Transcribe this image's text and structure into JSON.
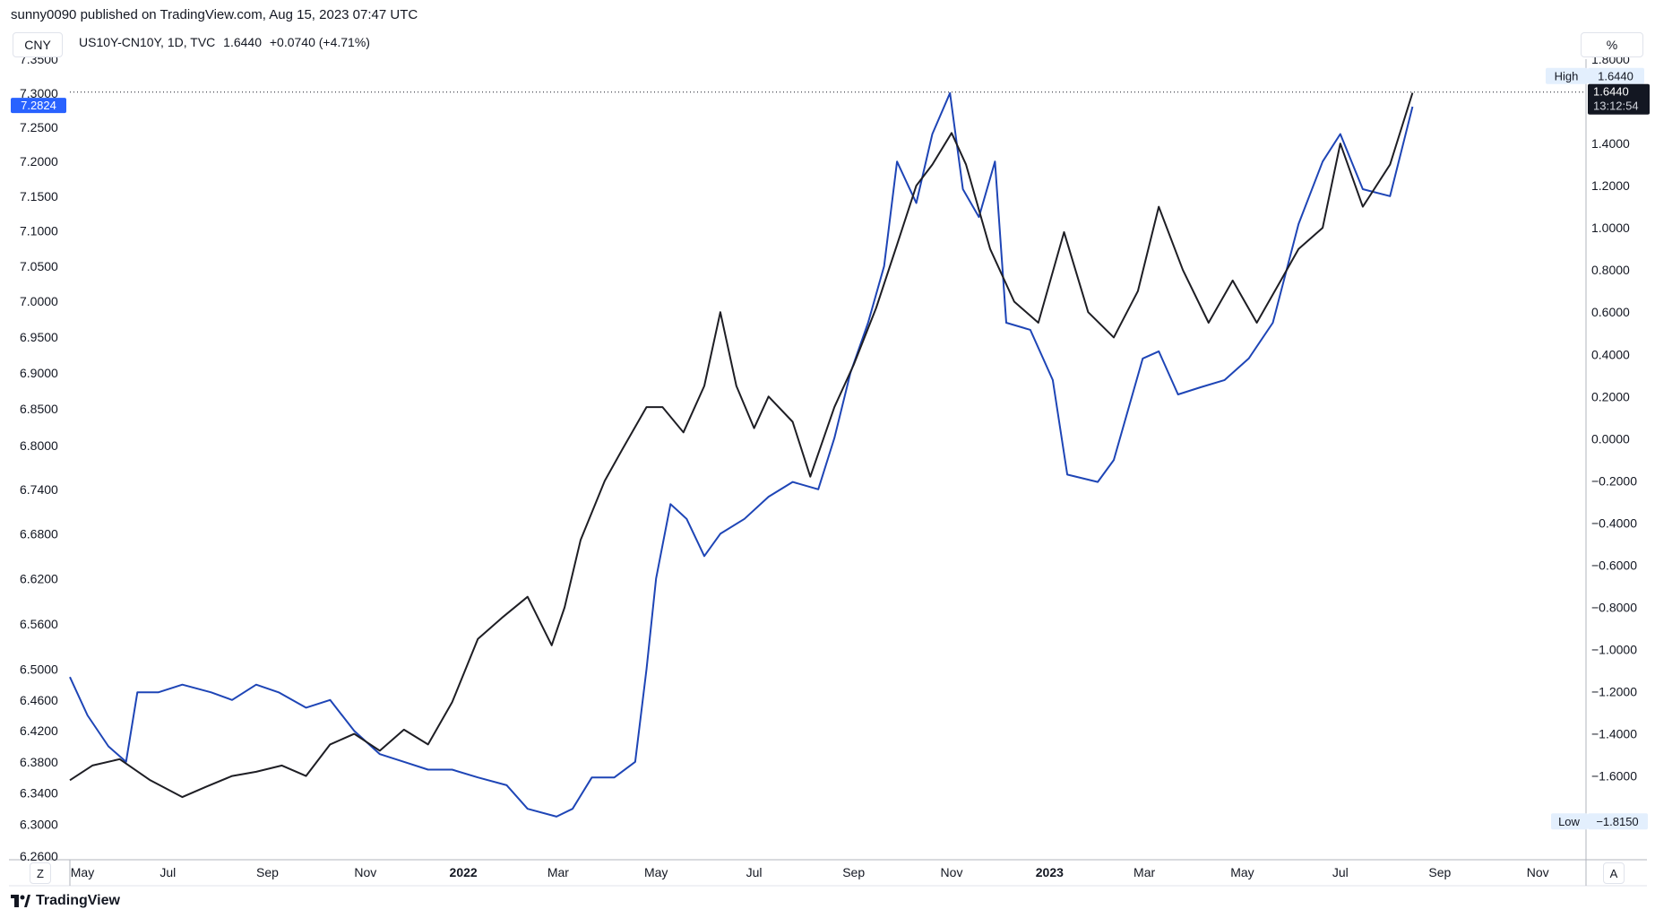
{
  "header": {
    "attribution": "sunny0090 published on TradingView.com, Aug 15, 2023 07:47 UTC"
  },
  "toolbar": {
    "symbol_button": "CNY",
    "percent_button": "%",
    "z_button": "Z",
    "a_button": "A"
  },
  "legend": {
    "symbol": "US10Y-CN10Y, 1D, TVC",
    "value": "1.6440",
    "change": "+0.0740 (+4.71%)"
  },
  "footer": {
    "brand": "TradingView"
  },
  "colors": {
    "cny_line": "#1e45b6",
    "spread_line": "#1e1e24",
    "cny_badge": "#2962ff",
    "spread_badge": "#131722",
    "label_bg": "#e3effd"
  },
  "chart_data": {
    "type": "line",
    "x_axis": {
      "range": [
        "2021-05-01",
        "2023-12-01"
      ],
      "ticks": [
        {
          "date": "2021-05-01",
          "label": "May",
          "bold": false
        },
        {
          "date": "2021-07-01",
          "label": "Jul",
          "bold": false
        },
        {
          "date": "2021-09-01",
          "label": "Sep",
          "bold": false
        },
        {
          "date": "2021-11-01",
          "label": "Nov",
          "bold": false
        },
        {
          "date": "2022-01-01",
          "label": "2022",
          "bold": true
        },
        {
          "date": "2022-03-01",
          "label": "Mar",
          "bold": false
        },
        {
          "date": "2022-05-01",
          "label": "May",
          "bold": false
        },
        {
          "date": "2022-07-01",
          "label": "Jul",
          "bold": false
        },
        {
          "date": "2022-09-01",
          "label": "Sep",
          "bold": false
        },
        {
          "date": "2022-11-01",
          "label": "Nov",
          "bold": false
        },
        {
          "date": "2023-01-01",
          "label": "2023",
          "bold": true
        },
        {
          "date": "2023-03-01",
          "label": "Mar",
          "bold": false
        },
        {
          "date": "2023-05-01",
          "label": "May",
          "bold": false
        },
        {
          "date": "2023-07-01",
          "label": "Jul",
          "bold": false
        },
        {
          "date": "2023-09-01",
          "label": "Sep",
          "bold": false
        },
        {
          "date": "2023-11-01",
          "label": "Nov",
          "bold": false
        }
      ]
    },
    "left_axis": {
      "scale": "log",
      "ylim": [
        6.26,
        7.35
      ],
      "tick_labels": [
        "7.3500",
        "7.3000",
        "7.2500",
        "7.2000",
        "7.1500",
        "7.1000",
        "7.0500",
        "7.0000",
        "6.9500",
        "6.9000",
        "6.8500",
        "6.8000",
        "6.7400",
        "6.6800",
        "6.6200",
        "6.5600",
        "6.5000",
        "6.4600",
        "6.4200",
        "6.3800",
        "6.3400",
        "6.3000",
        "6.2600"
      ],
      "current_label": "7.2824"
    },
    "right_axis": {
      "ylim": [
        -1.98,
        1.8
      ],
      "tick_labels": [
        "1.8000",
        "1.4000",
        "1.2000",
        "1.0000",
        "0.8000",
        "0.6000",
        "0.4000",
        "0.2000",
        "0.0000",
        "−0.2000",
        "−0.4000",
        "−0.6000",
        "−0.8000",
        "−1.0000",
        "−1.2000",
        "−1.4000",
        "−1.6000"
      ],
      "high_label": "High",
      "high_value": "1.6440",
      "low_label": "Low",
      "low_value": "−1.8150",
      "current_value": "1.6440",
      "countdown": "13:12:54"
    },
    "series": [
      {
        "name": "CNY",
        "axis": "left",
        "points": [
          [
            "2021-05-01",
            6.49
          ],
          [
            "2021-05-12",
            6.44
          ],
          [
            "2021-05-25",
            6.4
          ],
          [
            "2021-06-05",
            6.38
          ],
          [
            "2021-06-12",
            6.47
          ],
          [
            "2021-06-25",
            6.47
          ],
          [
            "2021-07-10",
            6.48
          ],
          [
            "2021-07-28",
            6.47
          ],
          [
            "2021-08-10",
            6.46
          ],
          [
            "2021-08-25",
            6.48
          ],
          [
            "2021-09-08",
            6.47
          ],
          [
            "2021-09-25",
            6.45
          ],
          [
            "2021-10-10",
            6.46
          ],
          [
            "2021-10-25",
            6.42
          ],
          [
            "2021-11-10",
            6.39
          ],
          [
            "2021-11-25",
            6.38
          ],
          [
            "2021-12-10",
            6.37
          ],
          [
            "2021-12-25",
            6.37
          ],
          [
            "2022-01-10",
            6.36
          ],
          [
            "2022-01-28",
            6.35
          ],
          [
            "2022-02-10",
            6.32
          ],
          [
            "2022-02-28",
            6.31
          ],
          [
            "2022-03-10",
            6.32
          ],
          [
            "2022-03-22",
            6.36
          ],
          [
            "2022-04-05",
            6.36
          ],
          [
            "2022-04-18",
            6.38
          ],
          [
            "2022-04-25",
            6.5
          ],
          [
            "2022-05-01",
            6.62
          ],
          [
            "2022-05-10",
            6.72
          ],
          [
            "2022-05-20",
            6.7
          ],
          [
            "2022-05-31",
            6.65
          ],
          [
            "2022-06-10",
            6.68
          ],
          [
            "2022-06-25",
            6.7
          ],
          [
            "2022-07-10",
            6.73
          ],
          [
            "2022-07-25",
            6.75
          ],
          [
            "2022-08-10",
            6.74
          ],
          [
            "2022-08-20",
            6.81
          ],
          [
            "2022-08-30",
            6.9
          ],
          [
            "2022-09-10",
            6.97
          ],
          [
            "2022-09-20",
            7.05
          ],
          [
            "2022-09-28",
            7.2
          ],
          [
            "2022-10-10",
            7.14
          ],
          [
            "2022-10-20",
            7.24
          ],
          [
            "2022-10-31",
            7.3
          ],
          [
            "2022-11-08",
            7.16
          ],
          [
            "2022-11-18",
            7.12
          ],
          [
            "2022-11-28",
            7.2
          ],
          [
            "2022-12-05",
            6.97
          ],
          [
            "2022-12-20",
            6.96
          ],
          [
            "2023-01-03",
            6.89
          ],
          [
            "2023-01-12",
            6.76
          ],
          [
            "2023-01-31",
            6.75
          ],
          [
            "2023-02-10",
            6.78
          ],
          [
            "2023-02-28",
            6.92
          ],
          [
            "2023-03-10",
            6.93
          ],
          [
            "2023-03-22",
            6.87
          ],
          [
            "2023-04-05",
            6.88
          ],
          [
            "2023-04-20",
            6.89
          ],
          [
            "2023-05-05",
            6.92
          ],
          [
            "2023-05-20",
            6.97
          ],
          [
            "2023-06-05",
            7.11
          ],
          [
            "2023-06-20",
            7.2
          ],
          [
            "2023-07-01",
            7.24
          ],
          [
            "2023-07-15",
            7.16
          ],
          [
            "2023-08-01",
            7.15
          ],
          [
            "2023-08-15",
            7.28
          ]
        ]
      },
      {
        "name": "US10Y-CN10Y",
        "axis": "right",
        "points": [
          [
            "2021-05-01",
            -1.62
          ],
          [
            "2021-05-15",
            -1.55
          ],
          [
            "2021-06-01",
            -1.52
          ],
          [
            "2021-06-20",
            -1.62
          ],
          [
            "2021-07-10",
            -1.7
          ],
          [
            "2021-07-25",
            -1.65
          ],
          [
            "2021-08-10",
            -1.6
          ],
          [
            "2021-08-25",
            -1.58
          ],
          [
            "2021-09-10",
            -1.55
          ],
          [
            "2021-09-25",
            -1.6
          ],
          [
            "2021-10-10",
            -1.45
          ],
          [
            "2021-10-25",
            -1.4
          ],
          [
            "2021-11-10",
            -1.48
          ],
          [
            "2021-11-25",
            -1.38
          ],
          [
            "2021-12-10",
            -1.45
          ],
          [
            "2021-12-25",
            -1.25
          ],
          [
            "2022-01-10",
            -0.95
          ],
          [
            "2022-01-25",
            -0.85
          ],
          [
            "2022-02-10",
            -0.75
          ],
          [
            "2022-02-25",
            -0.98
          ],
          [
            "2022-03-05",
            -0.8
          ],
          [
            "2022-03-15",
            -0.48
          ],
          [
            "2022-03-30",
            -0.2
          ],
          [
            "2022-04-10",
            -0.05
          ],
          [
            "2022-04-25",
            0.15
          ],
          [
            "2022-05-05",
            0.15
          ],
          [
            "2022-05-18",
            0.03
          ],
          [
            "2022-05-31",
            0.25
          ],
          [
            "2022-06-10",
            0.6
          ],
          [
            "2022-06-20",
            0.25
          ],
          [
            "2022-07-01",
            0.05
          ],
          [
            "2022-07-10",
            0.2
          ],
          [
            "2022-07-25",
            0.08
          ],
          [
            "2022-08-05",
            -0.18
          ],
          [
            "2022-08-20",
            0.15
          ],
          [
            "2022-09-01",
            0.35
          ],
          [
            "2022-09-15",
            0.62
          ],
          [
            "2022-09-28",
            0.92
          ],
          [
            "2022-10-10",
            1.2
          ],
          [
            "2022-10-20",
            1.3
          ],
          [
            "2022-11-01",
            1.45
          ],
          [
            "2022-11-10",
            1.3
          ],
          [
            "2022-11-25",
            0.9
          ],
          [
            "2022-12-10",
            0.65
          ],
          [
            "2022-12-25",
            0.55
          ],
          [
            "2023-01-10",
            0.98
          ],
          [
            "2023-01-25",
            0.6
          ],
          [
            "2023-02-10",
            0.48
          ],
          [
            "2023-02-25",
            0.7
          ],
          [
            "2023-03-10",
            1.1
          ],
          [
            "2023-03-25",
            0.8
          ],
          [
            "2023-04-10",
            0.55
          ],
          [
            "2023-04-25",
            0.75
          ],
          [
            "2023-05-10",
            0.55
          ],
          [
            "2023-05-25",
            0.75
          ],
          [
            "2023-06-05",
            0.9
          ],
          [
            "2023-06-20",
            1.0
          ],
          [
            "2023-07-01",
            1.4
          ],
          [
            "2023-07-15",
            1.1
          ],
          [
            "2023-08-01",
            1.3
          ],
          [
            "2023-08-15",
            1.64
          ]
        ]
      }
    ]
  }
}
